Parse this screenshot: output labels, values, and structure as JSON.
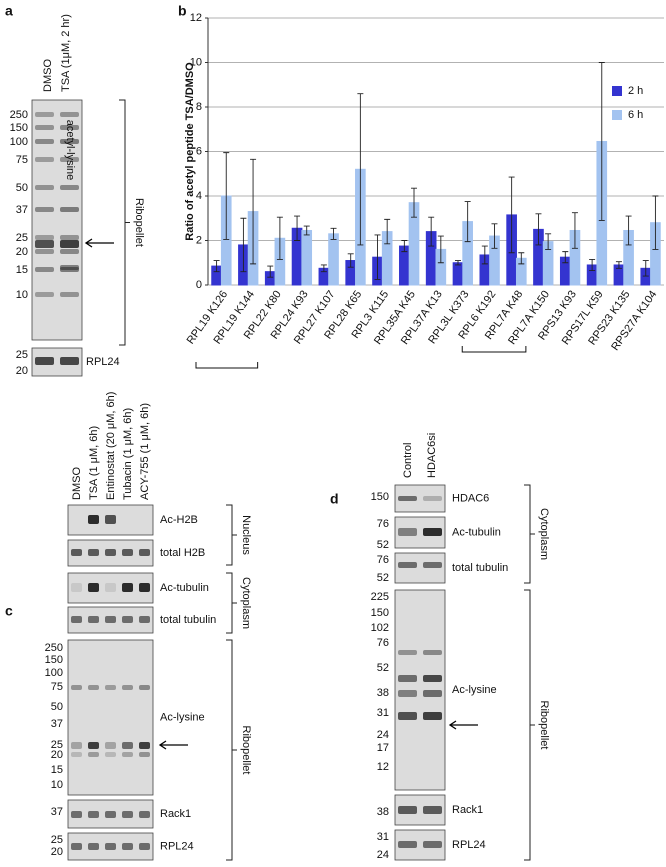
{
  "panel_a": {
    "label": "a",
    "lanes": [
      "DMSO",
      "TSA (1μM, 2 hr)"
    ],
    "markers": [
      "250",
      "150",
      "100",
      "75",
      "50",
      "37",
      "25",
      "20",
      "15",
      "10"
    ],
    "annotation": "acetyl-lysine",
    "group": "Ribopellet",
    "lower_markers": [
      "25",
      "20"
    ],
    "lower_label": "RPL24"
  },
  "chart_data": {
    "type": "bar",
    "panel_label": "b",
    "y_label": "Ratio of acetyl peptide TSA/DMSO",
    "categories": [
      "RPL19 K126",
      "RPL19 K144",
      "RPL22 K80",
      "RPL24 K93",
      "RPL27 K107",
      "RPL28 K65",
      "RPL3 K115",
      "RPL35A K45",
      "RPL37A K13",
      "RPL3L K373",
      "RPL6 K192",
      "RPL7A K48",
      "RPL7A K150",
      "RPS13 K93",
      "RPS17L K59",
      "RPS23 K135",
      "RPS27A K104"
    ],
    "series": [
      {
        "name": "2 h",
        "color": "#3434d0",
        "values": [
          0.85,
          1.8,
          0.6,
          2.55,
          0.75,
          1.1,
          1.25,
          1.75,
          2.4,
          1.0,
          1.35,
          3.15,
          2.5,
          1.25,
          0.9,
          0.9,
          0.75
        ],
        "errors": [
          0.25,
          1.2,
          0.25,
          0.55,
          0.15,
          0.3,
          1.0,
          0.25,
          0.65,
          0.1,
          0.4,
          1.7,
          0.7,
          0.25,
          0.25,
          0.15,
          0.35
        ]
      },
      {
        "name": "6 h",
        "color": "#a3c3f0",
        "values": [
          4.0,
          3.3,
          2.1,
          2.45,
          2.3,
          5.2,
          2.4,
          3.7,
          1.6,
          2.85,
          2.2,
          1.2,
          1.95,
          2.45,
          6.45,
          2.45,
          2.8
        ],
        "errors": [
          1.95,
          2.35,
          0.95,
          0.2,
          0.25,
          3.4,
          0.55,
          0.65,
          0.6,
          0.9,
          0.55,
          0.25,
          0.35,
          0.8,
          3.55,
          0.65,
          1.2
        ]
      }
    ],
    "ylim": [
      0,
      12
    ],
    "yticks": [
      0,
      2,
      4,
      6,
      8,
      10,
      12
    ],
    "grid": true,
    "legend": "right"
  },
  "panel_c": {
    "label": "c",
    "lanes": [
      "DMSO",
      "TSA (1 μM, 6h)",
      "Entinostat (20 μM, 6h)",
      "Tubacin (1 μM, 6h)",
      "ACY-755 (1 μM, 6h)"
    ],
    "blots": [
      {
        "label": "Ac-H2B"
      },
      {
        "label": "total H2B"
      },
      {
        "label": "Ac-tubulin"
      },
      {
        "label": "total tubulin"
      },
      {
        "label": "Ac-lysine",
        "markers": [
          "250",
          "150",
          "100",
          "75",
          "50",
          "37",
          "25",
          "20",
          "15",
          "10"
        ]
      },
      {
        "label": "Rack1",
        "markers": [
          "37"
        ]
      },
      {
        "label": "RPL24",
        "markers": [
          "25",
          "20"
        ]
      }
    ],
    "groups": [
      "Nucleus",
      "Cytoplasm",
      "Ribopellet"
    ]
  },
  "panel_d": {
    "label": "d",
    "lanes": [
      "Control",
      "HDAC6si"
    ],
    "blots": [
      {
        "label": "HDAC6",
        "markers": [
          "150"
        ]
      },
      {
        "label": "Ac-tubulin",
        "markers": [
          "76",
          "52"
        ]
      },
      {
        "label": "total tubulin",
        "markers": [
          "76",
          "52"
        ]
      },
      {
        "label": "Ac-lysine",
        "markers": [
          "225",
          "150",
          "102",
          "76",
          "52",
          "38",
          "31",
          "24",
          "17",
          "12"
        ]
      },
      {
        "label": "Rack1",
        "markers": [
          "38"
        ]
      },
      {
        "label": "RPL24",
        "markers": [
          "31",
          "24"
        ]
      }
    ],
    "groups": [
      "Cytoplasm",
      "Ribopellet"
    ]
  }
}
